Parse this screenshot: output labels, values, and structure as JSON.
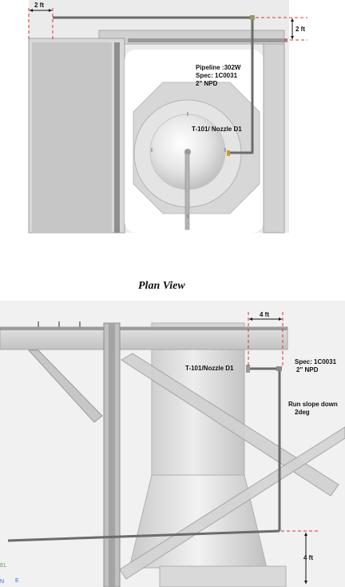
{
  "plan": {
    "dim_top": "2 ft",
    "dim_right": "2 ft",
    "pipeline_line1": "Pipeline :302W",
    "pipeline_line2": "Spec: 1C0031",
    "pipeline_line3": "2\" NPD",
    "nozzle_label": "T-101/ Nozzle D1"
  },
  "plan_title": "Plan View",
  "elevation": {
    "dim_top": "4 ft",
    "nozzle_label": "T-101/Nozzle D1",
    "spec_line1": "Spec: 1C0031",
    "spec_line2": "2\" NPD",
    "slope_line1": "Run slope down",
    "slope_line2": "2deg",
    "dim_bottom": "4 ft"
  },
  "axis_indicator": {
    "el_label": "EL",
    "n_label": "N",
    "e_label": "E"
  },
  "colors": {
    "dimension_dash": "#e03030",
    "pipe": "#6b6b6b",
    "steel": "#c8c8c8",
    "steel_dark": "#8e8e8e",
    "background": "#ebebeb"
  }
}
